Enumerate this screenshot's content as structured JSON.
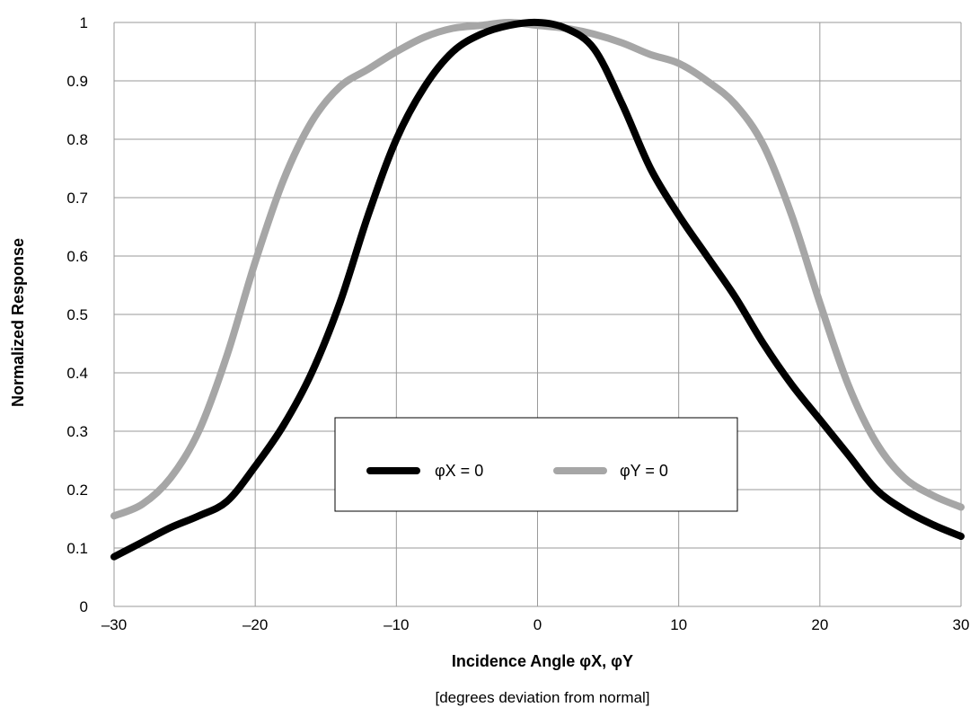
{
  "chart_data": {
    "type": "line",
    "title": "",
    "xlabel": "Incidence Angle φX, φY",
    "xlabel_sub": "[degrees deviation from normal]",
    "ylabel": "Normalized Response",
    "xlim": [
      -30,
      30
    ],
    "ylim": [
      0,
      1
    ],
    "x_ticks": [
      -30,
      -20,
      -10,
      0,
      10,
      20,
      30
    ],
    "x_tick_labels": [
      "–30",
      "–20",
      "–10",
      "0",
      "10",
      "20",
      "30"
    ],
    "y_ticks": [
      0,
      0.1,
      0.2,
      0.3,
      0.4,
      0.5,
      0.6,
      0.7,
      0.8,
      0.9,
      1
    ],
    "y_tick_labels": [
      "0",
      "0.1",
      "0.2",
      "0.3",
      "0.4",
      "0.5",
      "0.6",
      "0.7",
      "0.8",
      "0.9",
      "1"
    ],
    "grid": true,
    "legend_position": "center-bottom",
    "series": [
      {
        "name": "φX = 0",
        "color": "#000000",
        "x": [
          -30,
          -28,
          -26,
          -24,
          -22,
          -20,
          -18,
          -16,
          -14,
          -12,
          -10,
          -8,
          -6,
          -4,
          -2,
          0,
          2,
          4,
          6,
          8,
          10,
          12,
          14,
          16,
          18,
          20,
          22,
          24,
          26,
          28,
          30
        ],
        "y": [
          0.085,
          0.11,
          0.135,
          0.155,
          0.18,
          0.24,
          0.31,
          0.4,
          0.52,
          0.67,
          0.8,
          0.89,
          0.95,
          0.98,
          0.995,
          1.0,
          0.99,
          0.955,
          0.86,
          0.75,
          0.67,
          0.6,
          0.53,
          0.45,
          0.38,
          0.32,
          0.26,
          0.2,
          0.165,
          0.14,
          0.12
        ]
      },
      {
        "name": "φY = 0",
        "color": "#a6a6a6",
        "x": [
          -30,
          -28,
          -26,
          -24,
          -22,
          -20,
          -18,
          -16,
          -14,
          -12,
          -10,
          -8,
          -6,
          -4,
          -2,
          0,
          2,
          4,
          6,
          8,
          10,
          12,
          14,
          16,
          18,
          20,
          22,
          24,
          26,
          28,
          30
        ],
        "y": [
          0.155,
          0.175,
          0.22,
          0.3,
          0.43,
          0.59,
          0.73,
          0.83,
          0.89,
          0.92,
          0.95,
          0.975,
          0.99,
          0.995,
          1.0,
          0.995,
          0.99,
          0.98,
          0.965,
          0.945,
          0.93,
          0.9,
          0.86,
          0.79,
          0.67,
          0.52,
          0.38,
          0.28,
          0.22,
          0.19,
          0.17
        ]
      }
    ]
  }
}
